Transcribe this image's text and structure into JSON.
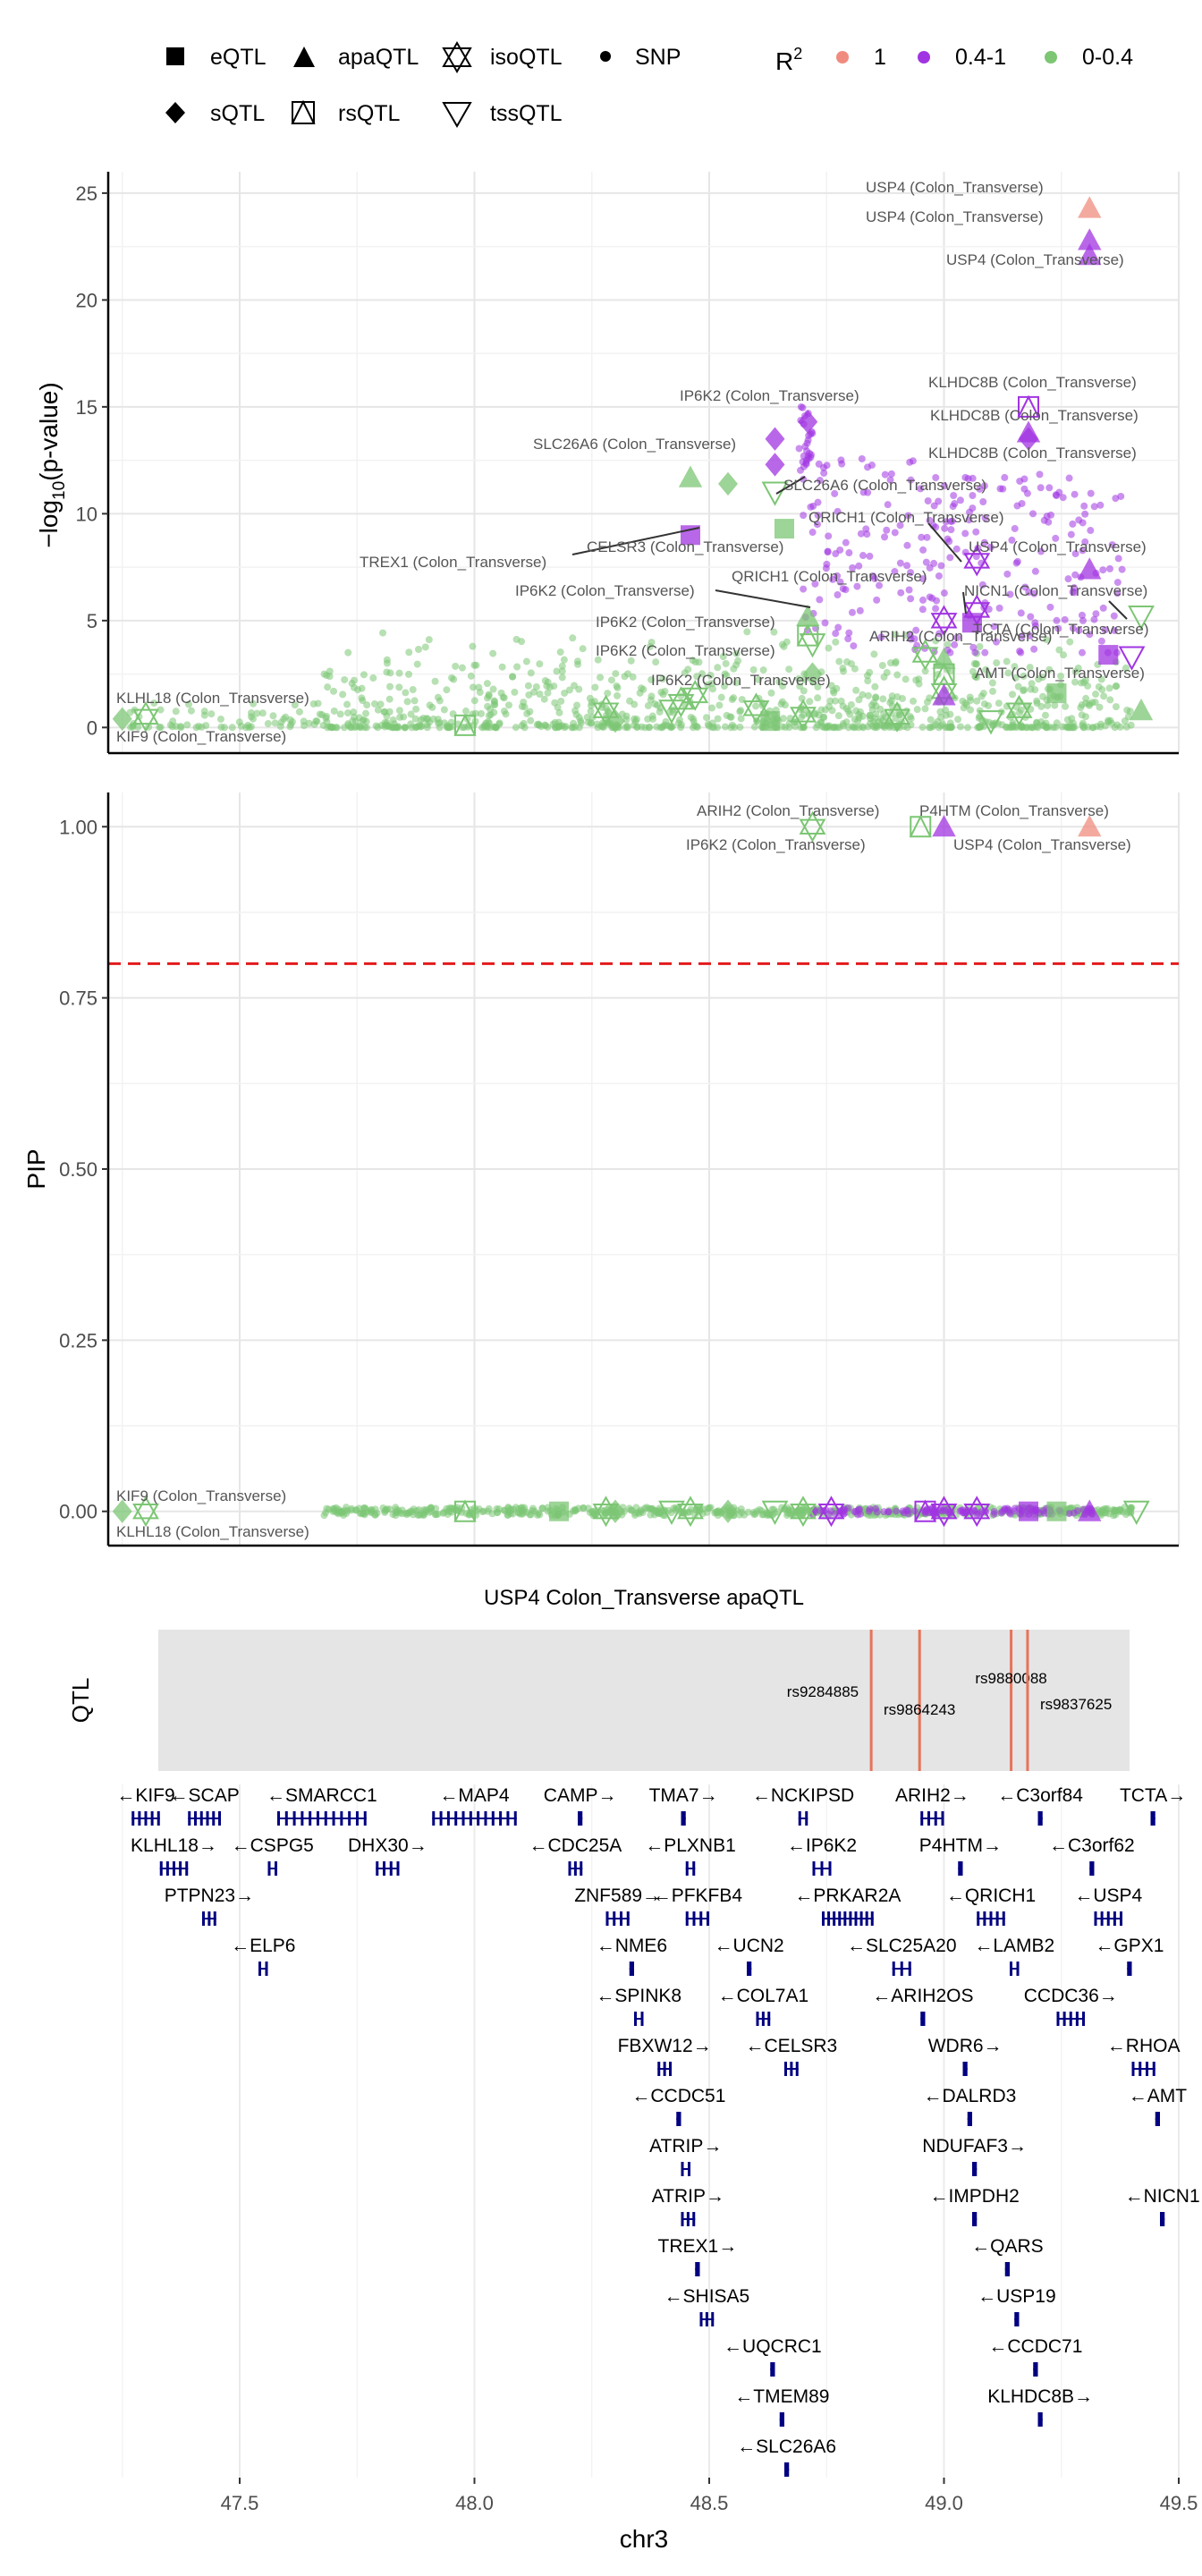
{
  "legend": {
    "shapes": [
      {
        "name": "eQTL",
        "shape": "square"
      },
      {
        "name": "apaQTL",
        "shape": "triangle"
      },
      {
        "name": "isoQTL",
        "shape": "star"
      },
      {
        "name": "SNP",
        "shape": "dot"
      },
      {
        "name": "sQTL",
        "shape": "diamond"
      },
      {
        "name": "rsQTL",
        "shape": "box-triangle"
      },
      {
        "name": "tssQTL",
        "shape": "triangle-down"
      }
    ],
    "r2_title": "R",
    "r2_superscript": "2",
    "r2": [
      {
        "name": "1",
        "color": "#F08C7F"
      },
      {
        "name": "0.4-1",
        "color": "#A134E2"
      },
      {
        "name": "0-0.4",
        "color": "#7CC674"
      }
    ]
  },
  "colors": {
    "high": "#F08C7F",
    "mid": "#A134E2",
    "low": "#7CC674",
    "threshold": "#E31A1C",
    "gene": "#000080",
    "qtl_line": "#E8735A"
  },
  "chart_data": [
    {
      "type": "scatter",
      "ylabel_main": "−log",
      "ylabel_sub": "10",
      "ylabel_tail": "(p-value)",
      "xlim": [
        47.22,
        49.5
      ],
      "ylim": [
        -1.2,
        26
      ],
      "yticks": [
        "0",
        "5",
        "10",
        "15",
        "20",
        "25"
      ],
      "annotations": [
        "USP4 (Colon_Transverse)",
        "USP4 (Colon_Transverse)",
        "USP4 (Colon_Transverse)",
        "KLHDC8B (Colon_Transverse)",
        "KLHDC8B (Colon_Transverse)",
        "KLHDC8B (Colon_Transverse)",
        "IP6K2 (Colon_Transverse)",
        "SLC26A6 (Colon_Transverse)",
        "SLC26A6 (Colon_Transverse)",
        "QRICH1 (Colon_Transverse)",
        "CELSR3 (Colon_Transverse)",
        "TREX1 (Colon_Transverse)",
        "USP4 (Colon_Transverse)",
        "IP6K2 (Colon_Transverse)",
        "QRICH1 (Colon_Transverse)",
        "NICN1 (Colon_Transverse)",
        "IP6K2 (Colon_Transverse)",
        "TCTA (Colon_Transverse)",
        "ARIH2 (Colon_Transverse)",
        "IP6K2 (Colon_Transverse)",
        "AMT (Colon_Transverse)",
        "IP6K2 (Colon_Transverse)",
        "KLHL18 (Colon_Transverse)",
        "KIF9 (Colon_Transverse)"
      ]
    },
    {
      "type": "scatter",
      "ylabel": "PIP",
      "xlim": [
        47.22,
        49.5
      ],
      "ylim": [
        -0.05,
        1.05
      ],
      "yticks": [
        "0.00",
        "0.25",
        "0.50",
        "0.75",
        "1.00"
      ],
      "threshold": 0.8,
      "annotations": [
        "ARIH2 (Colon_Transverse)",
        "P4HTM (Colon_Transverse)",
        "IP6K2 (Colon_Transverse)",
        "USP4 (Colon_Transverse)",
        "KIF9 (Colon_Transverse)",
        "KLHL18 (Colon_Transverse)"
      ]
    }
  ],
  "qtl_panel": {
    "title": "USP4 Colon_Transverse apaQTL",
    "ylabel": "QTL",
    "snps": [
      {
        "rsid": "rs9284885",
        "pos": 48.845
      },
      {
        "rsid": "rs9864243",
        "pos": 48.948
      },
      {
        "rsid": "rs9880088",
        "pos": 49.143
      },
      {
        "rsid": "rs9837625",
        "pos": 49.178
      }
    ]
  },
  "genes": [
    {
      "label": "←KIF9",
      "start": 47.27,
      "end": 47.33,
      "row": 0
    },
    {
      "label": "←SCAP",
      "start": 47.39,
      "end": 47.46,
      "row": 0
    },
    {
      "label": "←SMARCC1",
      "start": 47.58,
      "end": 47.77,
      "row": 0
    },
    {
      "label": "←MAP4",
      "start": 47.91,
      "end": 48.09,
      "row": 0
    },
    {
      "label": "CAMP→",
      "start": 48.22,
      "end": 48.23,
      "row": 0
    },
    {
      "label": "TMA7→",
      "start": 48.44,
      "end": 48.45,
      "row": 0
    },
    {
      "label": "←NCKIPSD",
      "start": 48.69,
      "end": 48.71,
      "row": 0
    },
    {
      "label": "ARIH2→",
      "start": 48.95,
      "end": 49.0,
      "row": 0
    },
    {
      "label": "←C3orf84",
      "start": 49.2,
      "end": 49.21,
      "row": 0
    },
    {
      "label": "TCTA→",
      "start": 49.44,
      "end": 49.45,
      "row": 0
    },
    {
      "label": "KLHL18→",
      "start": 47.33,
      "end": 47.39,
      "row": 1
    },
    {
      "label": "←CSPG5",
      "start": 47.56,
      "end": 47.58,
      "row": 1
    },
    {
      "label": "DHX30→",
      "start": 47.79,
      "end": 47.84,
      "row": 1
    },
    {
      "label": "←CDC25A",
      "start": 48.2,
      "end": 48.23,
      "row": 1
    },
    {
      "label": "←PLXNB1",
      "start": 48.45,
      "end": 48.47,
      "row": 1
    },
    {
      "label": "←IP6K2",
      "start": 48.72,
      "end": 48.76,
      "row": 1
    },
    {
      "label": "P4HTM→",
      "start": 49.03,
      "end": 49.04,
      "row": 1
    },
    {
      "label": "←C3orf62",
      "start": 49.31,
      "end": 49.32,
      "row": 1
    },
    {
      "label": "PTPN23→",
      "start": 47.42,
      "end": 47.45,
      "row": 2
    },
    {
      "label": "ZNF589→",
      "start": 48.28,
      "end": 48.33,
      "row": 2
    },
    {
      "label": "←PFKFB4",
      "start": 48.45,
      "end": 48.5,
      "row": 2
    },
    {
      "label": "←PRKAR2A",
      "start": 48.74,
      "end": 48.85,
      "row": 2
    },
    {
      "label": "←QRICH1",
      "start": 49.07,
      "end": 49.13,
      "row": 2
    },
    {
      "label": "←USP4",
      "start": 49.32,
      "end": 49.38,
      "row": 2
    },
    {
      "label": "←ELP6",
      "start": 47.54,
      "end": 47.56,
      "row": 3
    },
    {
      "label": "←NME6",
      "start": 48.33,
      "end": 48.34,
      "row": 3
    },
    {
      "label": "←UCN2",
      "start": 48.58,
      "end": 48.59,
      "row": 3
    },
    {
      "label": "←SLC25A20",
      "start": 48.89,
      "end": 48.93,
      "row": 3
    },
    {
      "label": "←LAMB2",
      "start": 49.14,
      "end": 49.16,
      "row": 3
    },
    {
      "label": "←GPX1",
      "start": 49.39,
      "end": 49.4,
      "row": 3
    },
    {
      "label": "←SPINK8",
      "start": 48.34,
      "end": 48.36,
      "row": 4
    },
    {
      "label": "←COL7A1",
      "start": 48.6,
      "end": 48.63,
      "row": 4
    },
    {
      "label": "←ARIH2OS",
      "start": 48.95,
      "end": 48.96,
      "row": 4
    },
    {
      "label": "CCDC36→",
      "start": 49.24,
      "end": 49.3,
      "row": 4
    },
    {
      "label": "FBXW12→",
      "start": 48.39,
      "end": 48.42,
      "row": 5
    },
    {
      "label": "←CELSR3",
      "start": 48.66,
      "end": 48.69,
      "row": 5
    },
    {
      "label": "WDR6→",
      "start": 49.04,
      "end": 49.05,
      "row": 5
    },
    {
      "label": "←RHOA",
      "start": 49.4,
      "end": 49.45,
      "row": 5
    },
    {
      "label": "←CCDC51",
      "start": 48.43,
      "end": 48.44,
      "row": 6
    },
    {
      "label": "←DALRD3",
      "start": 49.05,
      "end": 49.06,
      "row": 6
    },
    {
      "label": "←AMT",
      "start": 49.45,
      "end": 49.46,
      "row": 6
    },
    {
      "label": "ATRIP→",
      "start": 48.44,
      "end": 48.46,
      "row": 7
    },
    {
      "label": "NDUFAF3→",
      "start": 49.06,
      "end": 49.07,
      "row": 7
    },
    {
      "label": "ATRIP→",
      "start": 48.44,
      "end": 48.47,
      "row": 8
    },
    {
      "label": "←IMPDH2",
      "start": 49.06,
      "end": 49.07,
      "row": 8
    },
    {
      "label": "←NICN1",
      "start": 49.46,
      "end": 49.47,
      "row": 8
    },
    {
      "label": "TREX1→",
      "start": 48.47,
      "end": 48.48,
      "row": 9
    },
    {
      "label": "←QARS",
      "start": 49.13,
      "end": 49.14,
      "row": 9
    },
    {
      "label": "←SHISA5",
      "start": 48.48,
      "end": 48.51,
      "row": 10
    },
    {
      "label": "←USP19",
      "start": 49.15,
      "end": 49.16,
      "row": 10
    },
    {
      "label": "←UQCRC1",
      "start": 48.63,
      "end": 48.64,
      "row": 11
    },
    {
      "label": "←CCDC71",
      "start": 49.19,
      "end": 49.2,
      "row": 11
    },
    {
      "label": "←TMEM89",
      "start": 48.65,
      "end": 48.66,
      "row": 12
    },
    {
      "label": "KLHDC8B→",
      "start": 49.2,
      "end": 49.21,
      "row": 12
    },
    {
      "label": "←SLC26A6",
      "start": 48.66,
      "end": 48.67,
      "row": 13
    }
  ],
  "xaxis": {
    "label": "chr3",
    "ticks": [
      "47.5",
      "48.0",
      "48.5",
      "49.0",
      "49.5"
    ]
  }
}
